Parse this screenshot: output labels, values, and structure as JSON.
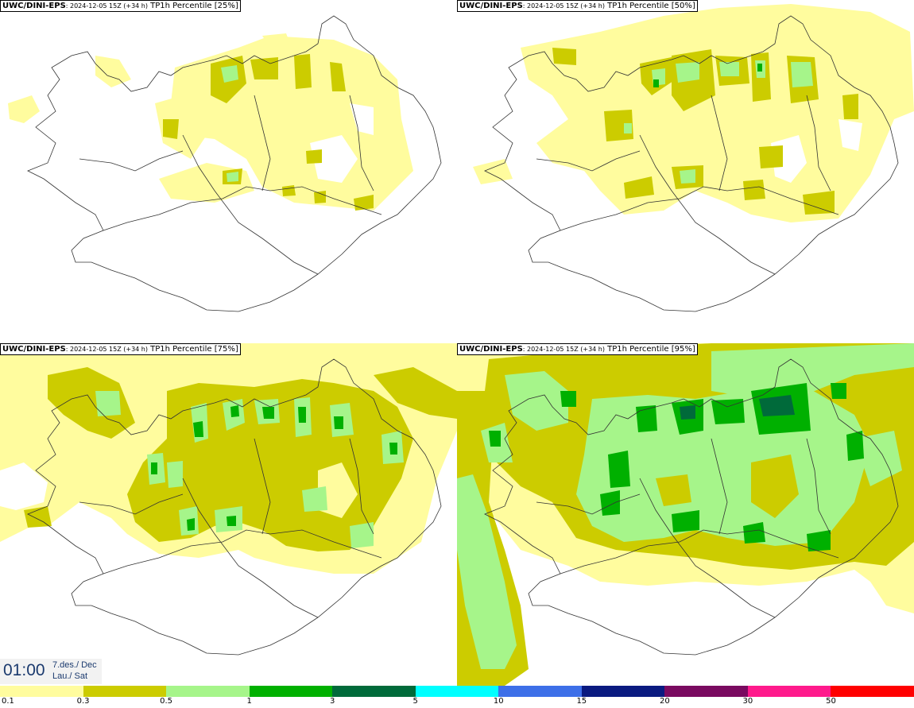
{
  "panels": [
    {
      "source": "UWC/DINI-EPS",
      "run": ": 2024-12-05 15Z (+34 h)",
      "label": " TP1h Percentile [25%]"
    },
    {
      "source": "UWC/DINI-EPS",
      "run": ": 2024-12-05 15Z (+34 h)",
      "label": " TP1h Percentile [50%]"
    },
    {
      "source": "UWC/DINI-EPS",
      "run": ": 2024-12-05 15Z (+34 h)",
      "label": " TP1h Percentile [75%]"
    },
    {
      "source": "UWC/DINI-EPS",
      "run": ": 2024-12-05 15Z (+34 h)",
      "label": " TP1h Percentile [95%]"
    }
  ],
  "valid": {
    "time": "01:00",
    "date_line1": "7.des./ Dec",
    "date_line2": "Lau./ Sat"
  },
  "legend": {
    "colors": [
      "#fffc9e",
      "#cccc00",
      "#a6f58a",
      "#00b000",
      "#006a3a",
      "#00ffff",
      "#3d6fe8",
      "#0a1a80",
      "#7a0a60",
      "#ff1a8c",
      "#ff0000"
    ],
    "ticks": [
      "0.1",
      "0.3",
      "0.5",
      "1",
      "3",
      "5",
      "10",
      "15",
      "20",
      "30",
      "50"
    ]
  }
}
